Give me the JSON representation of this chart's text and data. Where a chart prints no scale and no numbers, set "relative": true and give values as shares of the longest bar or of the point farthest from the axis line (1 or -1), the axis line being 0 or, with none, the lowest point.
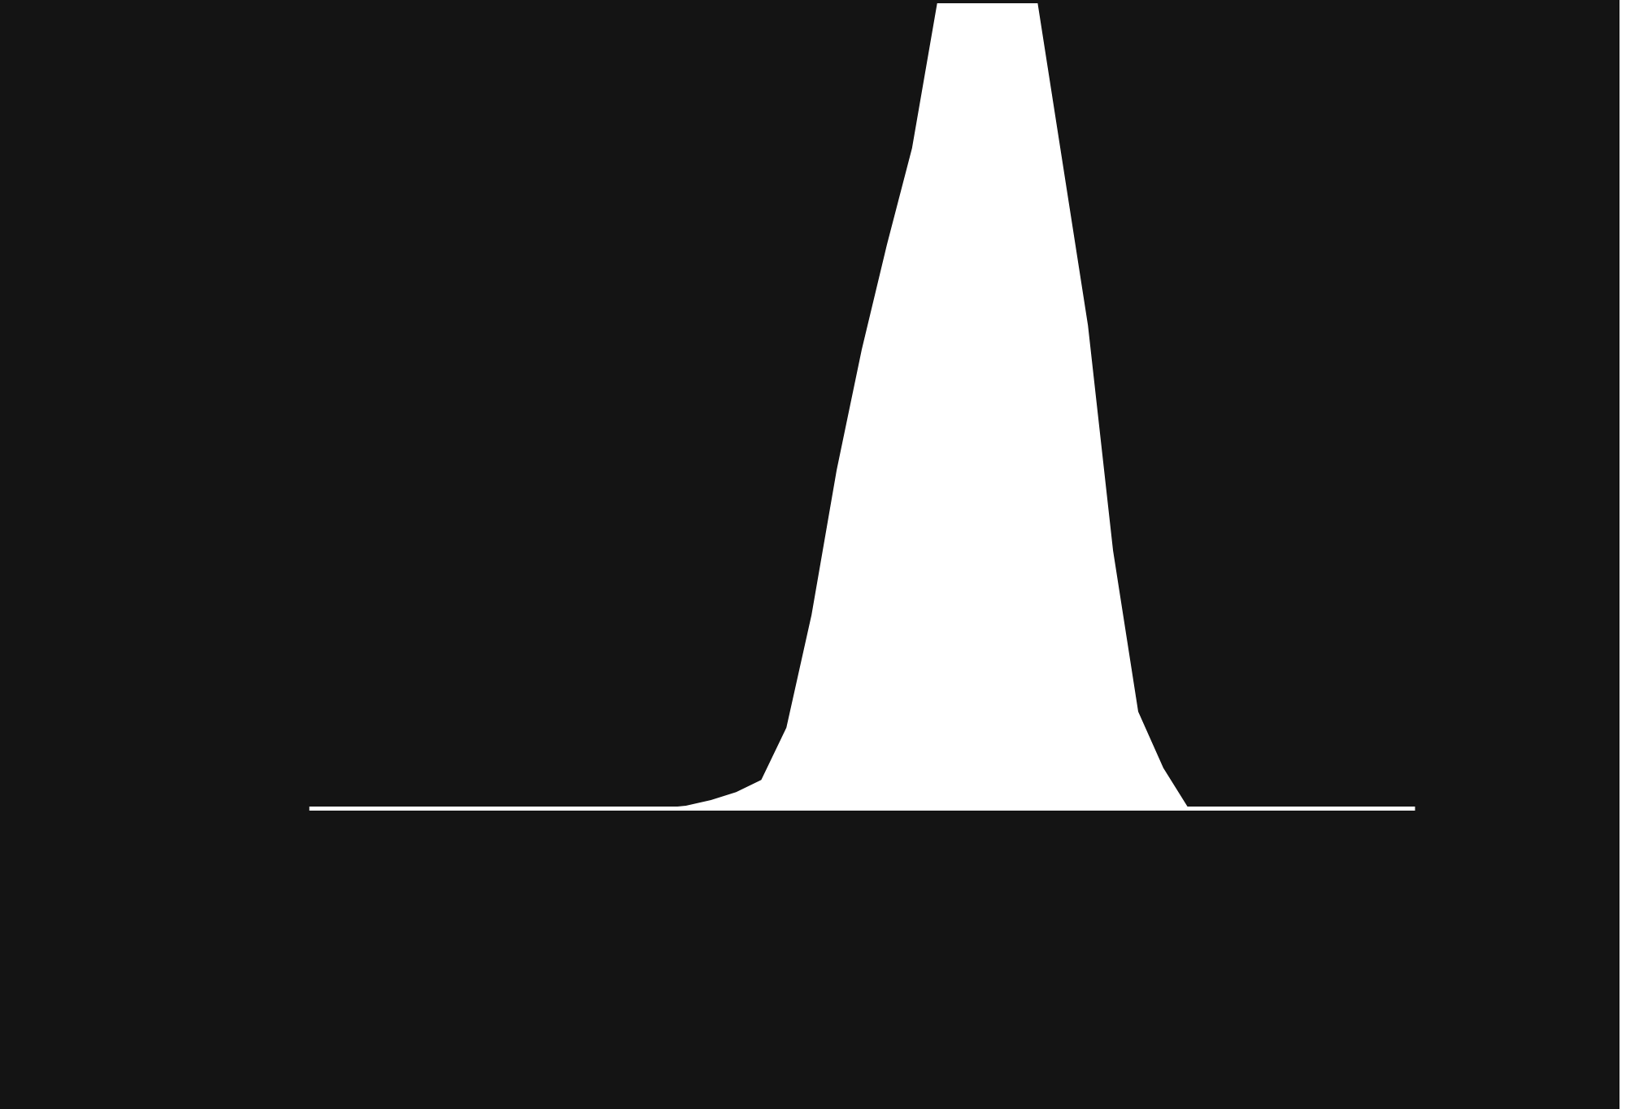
{
  "chart_data": {
    "type": "area",
    "relative": true,
    "categories": [
      null,
      null,
      null,
      null,
      null,
      null,
      null,
      null,
      null,
      null,
      null,
      null,
      null,
      null,
      null,
      null,
      null,
      null,
      null,
      null,
      null,
      null,
      null,
      null,
      null,
      null,
      null,
      null,
      null,
      null,
      null,
      null,
      null,
      null,
      null,
      null,
      null,
      null,
      null,
      null,
      null,
      null,
      null,
      null,
      null
    ],
    "series": [
      {
        "color": "#ffffff",
        "values": [
          0,
          0,
          0,
          0,
          0,
          0,
          0,
          0,
          0,
          0,
          0,
          0,
          0,
          0,
          0,
          0.003,
          0.01,
          0.02,
          0.035,
          0.1,
          0.24,
          0.42,
          0.57,
          0.7,
          0.82,
          1,
          1,
          1,
          1,
          1,
          0.8,
          0.6,
          0.32,
          0.12,
          0.05,
          0,
          0,
          0,
          0,
          0,
          0,
          0,
          0,
          0,
          0
        ]
      }
    ]
  }
}
